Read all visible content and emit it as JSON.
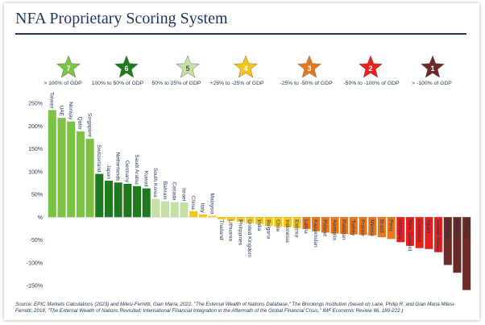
{
  "title": "NFA Proprietary Scoring System",
  "source": "Source: EPIC Markets Calculations (2023) and Milesi-Ferretti, Gian Maria, 2022, \"The External Wealth of Nations Database,\" The Brookings Institution (based on Lane, Philip R. and Gian Maria Milesi-Ferretti, 2018, \"The External Wealth of Nations Revisited: International Financial Integration in the Aftermath of the Global Financial Crisis,\" IMF Economic Review 66, 189-222.)",
  "scores": [
    {
      "score": "7",
      "label": "> 100% of GDP",
      "color": "#7cc243"
    },
    {
      "score": "6",
      "label": "100% to 50% of GDP",
      "color": "#1f7a1f"
    },
    {
      "score": "5",
      "label": "50% to 25% of GDP",
      "color": "#c5e0a5"
    },
    {
      "score": "4",
      "label": "+25% to -25% of GDP",
      "color": "#f5c518"
    },
    {
      "score": "3",
      "label": "-25% to -50% of GDP",
      "color": "#e8771c"
    },
    {
      "score": "2",
      "label": "-50% to -100% of GDP",
      "color": "#e8201e"
    },
    {
      "score": "1",
      "label": "> -100% of GDP",
      "color": "#6b2a26"
    }
  ],
  "chart_data": {
    "type": "bar",
    "ylim": [
      -150,
      250
    ],
    "yticks": [
      "250%",
      "200%",
      "150%",
      "100%",
      "50%",
      "%",
      "-50%",
      "-100%",
      "-150%"
    ],
    "ytick_values": [
      250,
      200,
      150,
      100,
      50,
      0,
      -50,
      -100,
      -150
    ],
    "categories": [
      "Taiwan",
      "UAE",
      "Norway",
      "Qatar",
      "Singapore",
      "Switzerland",
      "Japan",
      "Netherlands",
      "Germany",
      "Saudi Arabia",
      "Kuwait",
      "South Korea",
      "Bahrain",
      "Canada",
      "Israel",
      "China",
      "Italy",
      "Malaysia",
      "Thailand",
      "Lithuania",
      "Philippines",
      "United Kingdom",
      "India",
      "Bulgaria",
      "Chile",
      "Indonesia",
      "Estonia",
      "Latvia",
      "Kazakhstan",
      "Poland",
      "Australia",
      "Pakistan",
      "Turkey",
      "France",
      "Mexico",
      "Brazil",
      "Peru",
      "Hungary",
      "New Zealand",
      "Colombia",
      "Spain",
      "United States",
      "Portugal",
      "Ireland",
      "Greece"
    ],
    "values": [
      235,
      218,
      210,
      188,
      172,
      95,
      80,
      76,
      73,
      68,
      63,
      40,
      35,
      33,
      32,
      13,
      6,
      3,
      -5,
      -8,
      -10,
      -13,
      -15,
      -19,
      -21,
      -22,
      -24,
      -26,
      -31,
      -34,
      -36,
      -37,
      -38,
      -39,
      -40,
      -44,
      -48,
      -55,
      -63,
      -68,
      -70,
      -77,
      -105,
      -122,
      -160
    ],
    "scores": [
      7,
      7,
      7,
      7,
      7,
      6,
      6,
      6,
      6,
      6,
      6,
      5,
      5,
      5,
      5,
      4,
      4,
      4,
      4,
      4,
      4,
      4,
      4,
      4,
      4,
      4,
      4,
      3,
      3,
      3,
      3,
      3,
      3,
      3,
      3,
      3,
      3,
      2,
      2,
      2,
      2,
      2,
      1,
      1,
      1
    ]
  }
}
